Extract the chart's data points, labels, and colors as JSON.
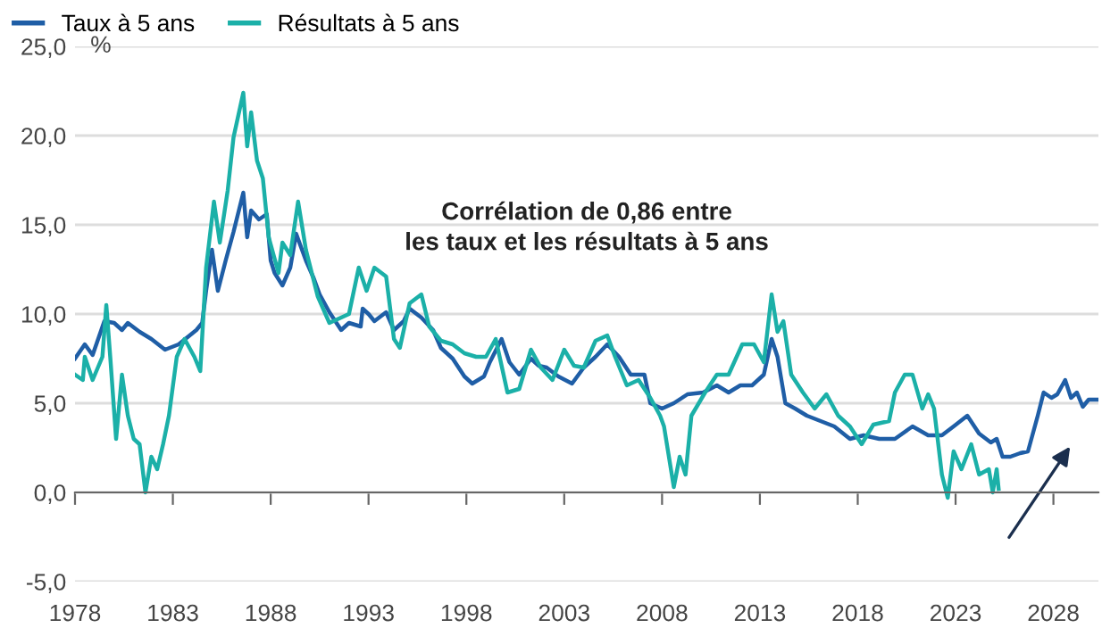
{
  "chart_data": {
    "type": "line",
    "ylabel": "%",
    "annotations": [
      "Corrélation de 0,86 entre\nles taux et les résultats à 5 ans"
    ],
    "xlim": [
      1978,
      2030.3
    ],
    "ylim": [
      -5,
      25
    ],
    "xticks": [
      1978,
      1983,
      1988,
      1993,
      1998,
      2003,
      2008,
      2013,
      2018,
      2023,
      2028
    ],
    "yticks": [
      {
        "value": -5,
        "label": "-5,0"
      },
      {
        "value": 0,
        "label": "0,0"
      },
      {
        "value": 5,
        "label": "5,0"
      },
      {
        "value": 10,
        "label": "10,0"
      },
      {
        "value": 15,
        "label": "15,0"
      },
      {
        "value": 20,
        "label": "20,0"
      },
      {
        "value": 25,
        "label": "25,0"
      }
    ],
    "grid": "y",
    "legend": "top left",
    "marker": "none",
    "line_style": "solid",
    "series": [
      {
        "name": "Taux à 5 ans",
        "color": "#1f5ea6",
        "x": [
          1978,
          1978.5,
          1978.9,
          1979.5,
          1980.0,
          1980.4,
          1980.7,
          1981.3,
          1981.9,
          1982.6,
          1983.3,
          1984.2,
          1984.5,
          1984.7,
          1985.0,
          1985.3,
          1985.7,
          1986.1,
          1986.6,
          1986.8,
          1987.0,
          1987.4,
          1987.8,
          1988.0,
          1988.2,
          1988.6,
          1989.0,
          1989.3,
          1989.8,
          1990.2,
          1990.5,
          1991.0,
          1991.6,
          1992.0,
          1992.6,
          1992.7,
          1993.0,
          1993.3,
          1993.9,
          1994.3,
          1994.8,
          1995.1,
          1995.7,
          1996.3,
          1996.7,
          1997.3,
          1997.9,
          1998.3,
          1998.9,
          1999.2,
          1999.8,
          2000.2,
          2000.7,
          2001.3,
          2001.7,
          2002.1,
          2002.7,
          2003.4,
          2004.0,
          2004.6,
          2005.2,
          2005.8,
          2006.4,
          2007.1,
          2007.4,
          2008.0,
          2008.6,
          2009.3,
          2010.1,
          2010.8,
          2011.4,
          2012.0,
          2012.6,
          2013.2,
          2013.6,
          2013.9,
          2014.3,
          2014.8,
          2015.4,
          2016.1,
          2016.8,
          2017.6,
          2018.3,
          2019.1,
          2019.9,
          2020.8,
          2021.6,
          2022.3,
          2022.9,
          2023.6,
          2024.2,
          2024.8,
          2025.1,
          2025.4,
          2025.8,
          2026.3,
          2026.7,
          2027.2,
          2027.5,
          2027.9,
          2028.2,
          2028.6,
          2028.9,
          2029.2,
          2029.5,
          2029.8,
          2030.2
        ],
        "values": [
          7.5,
          8.3,
          7.7,
          9.6,
          9.5,
          9.1,
          9.5,
          9.0,
          8.6,
          8.0,
          8.3,
          9.1,
          9.5,
          11.3,
          13.6,
          11.3,
          13.0,
          14.6,
          16.8,
          14.3,
          15.8,
          15.3,
          15.6,
          13.0,
          12.3,
          11.6,
          12.6,
          14.5,
          13.0,
          12.0,
          11.1,
          10.1,
          9.1,
          9.5,
          9.3,
          10.3,
          10.0,
          9.6,
          10.1,
          9.1,
          9.6,
          10.3,
          9.8,
          9.1,
          8.1,
          7.5,
          6.5,
          6.1,
          6.5,
          7.3,
          8.6,
          7.3,
          6.6,
          7.5,
          7.1,
          7.0,
          6.5,
          6.1,
          7.0,
          7.6,
          8.3,
          7.6,
          6.6,
          6.6,
          5.0,
          4.7,
          5.0,
          5.5,
          5.6,
          6.0,
          5.6,
          6.0,
          6.0,
          6.6,
          8.6,
          7.6,
          5.0,
          4.7,
          4.3,
          4.0,
          3.7,
          3.0,
          3.2,
          3.0,
          3.0,
          3.7,
          3.2,
          3.2,
          3.7,
          4.3,
          3.3,
          2.8,
          3.0,
          2.0,
          2.0,
          2.2,
          2.3,
          4.3,
          5.6,
          5.3,
          5.5,
          6.3,
          5.3,
          5.6,
          4.8,
          5.2,
          5.2
        ]
      },
      {
        "name": "Résultats à 5 ans",
        "color": "#1bb0a8",
        "x": [
          1978,
          1978.4,
          1978.5,
          1978.9,
          1979.4,
          1979.6,
          1979.8,
          1980.1,
          1980.4,
          1980.7,
          1981.0,
          1981.3,
          1981.6,
          1981.9,
          1982.2,
          1982.5,
          1982.8,
          1983.2,
          1983.6,
          1984.1,
          1984.4,
          1984.7,
          1985.1,
          1985.4,
          1985.8,
          1986.1,
          1986.6,
          1986.8,
          1987.0,
          1987.3,
          1987.6,
          1987.9,
          1988.4,
          1988.6,
          1989.0,
          1989.4,
          1989.8,
          1990.4,
          1991.0,
          1991.6,
          1992.0,
          1992.5,
          1992.9,
          1993.3,
          1993.9,
          1994.3,
          1994.6,
          1995.1,
          1995.7,
          1996.1,
          1996.7,
          1997.3,
          1997.9,
          1998.5,
          1999.0,
          1999.5,
          2000.1,
          2000.7,
          2001.3,
          2001.8,
          2002.4,
          2003.0,
          2003.5,
          2004.0,
          2004.6,
          2005.2,
          2005.6,
          2006.2,
          2006.8,
          2007.4,
          2007.9,
          2008.1,
          2008.6,
          2008.9,
          2009.2,
          2009.5,
          2010.2,
          2010.8,
          2011.4,
          2012.1,
          2012.7,
          2013.2,
          2013.6,
          2013.9,
          2014.2,
          2014.6,
          2015.2,
          2015.8,
          2016.4,
          2017.0,
          2017.6,
          2018.2,
          2018.8,
          2019.6,
          2019.9,
          2020.4,
          2020.8,
          2021.3,
          2021.6,
          2021.9,
          2022.3,
          2022.6,
          2022.9,
          2023.3,
          2023.8,
          2024.2,
          2024.7,
          2024.9,
          2025.1,
          2025.2
        ],
        "values": [
          6.6,
          6.3,
          7.6,
          6.3,
          7.6,
          10.5,
          7.6,
          3.0,
          6.6,
          4.3,
          3.0,
          2.7,
          0.0,
          2.0,
          1.3,
          2.7,
          4.3,
          7.6,
          8.6,
          7.6,
          6.8,
          12.6,
          16.3,
          14.0,
          16.9,
          19.9,
          22.4,
          19.4,
          21.3,
          18.6,
          17.6,
          14.3,
          12.3,
          14.0,
          13.3,
          16.3,
          13.6,
          11.0,
          9.5,
          9.8,
          10.0,
          12.6,
          11.3,
          12.6,
          12.1,
          8.6,
          8.1,
          10.6,
          11.1,
          9.3,
          8.5,
          8.3,
          7.8,
          7.6,
          7.6,
          8.6,
          5.6,
          5.8,
          8.0,
          7.0,
          6.3,
          8.0,
          7.1,
          7.0,
          8.5,
          8.8,
          7.6,
          6.0,
          6.3,
          5.3,
          4.3,
          3.7,
          0.3,
          2.0,
          1.0,
          4.3,
          5.6,
          6.6,
          6.6,
          8.3,
          8.3,
          7.3,
          11.1,
          9.0,
          9.6,
          6.6,
          5.6,
          4.7,
          5.5,
          4.3,
          3.7,
          2.7,
          3.8,
          4.0,
          5.6,
          6.6,
          6.6,
          4.7,
          5.5,
          4.7,
          1.0,
          -0.3,
          2.3,
          1.3,
          2.7,
          1.0,
          1.3,
          0.0,
          1.3,
          0.2
        ]
      }
    ]
  }
}
